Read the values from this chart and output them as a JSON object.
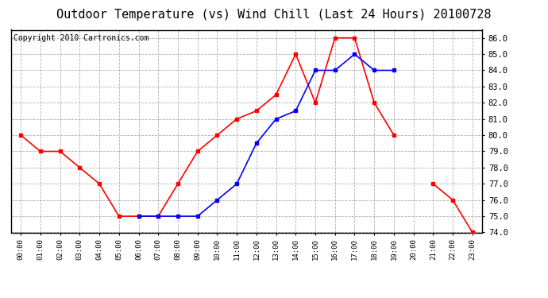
{
  "title": "Outdoor Temperature (vs) Wind Chill (Last 24 Hours) 20100728",
  "copyright": "Copyright 2010 Cartronics.com",
  "x_labels": [
    "00:00",
    "01:00",
    "02:00",
    "03:00",
    "04:00",
    "05:00",
    "06:00",
    "07:00",
    "08:00",
    "09:00",
    "10:00",
    "11:00",
    "12:00",
    "13:00",
    "14:00",
    "15:00",
    "16:00",
    "17:00",
    "18:00",
    "19:00",
    "20:00",
    "21:00",
    "22:00",
    "23:00"
  ],
  "temp_red": [
    80.0,
    79.0,
    79.0,
    78.0,
    77.0,
    75.0,
    75.0,
    75.0,
    77.0,
    79.0,
    80.0,
    81.0,
    81.5,
    82.5,
    85.0,
    82.0,
    86.0,
    86.0,
    82.0,
    80.0,
    null,
    77.0,
    76.0,
    74.0
  ],
  "wind_blue": [
    null,
    null,
    null,
    null,
    null,
    null,
    75.0,
    75.0,
    75.0,
    75.0,
    76.0,
    77.0,
    79.5,
    81.0,
    81.5,
    84.0,
    84.0,
    85.0,
    84.0,
    84.0,
    null,
    null,
    null,
    null
  ],
  "ylim": [
    74.0,
    86.5
  ],
  "yticks": [
    74.0,
    75.0,
    76.0,
    77.0,
    78.0,
    79.0,
    80.0,
    81.0,
    82.0,
    83.0,
    84.0,
    85.0,
    86.0
  ],
  "red_color": "#ff0000",
  "blue_color": "#0000ff",
  "bg_color": "#ffffff",
  "grid_color": "#b0b0b0",
  "title_fontsize": 11,
  "copyright_fontsize": 7,
  "figwidth": 6.9,
  "figheight": 3.75,
  "dpi": 100
}
